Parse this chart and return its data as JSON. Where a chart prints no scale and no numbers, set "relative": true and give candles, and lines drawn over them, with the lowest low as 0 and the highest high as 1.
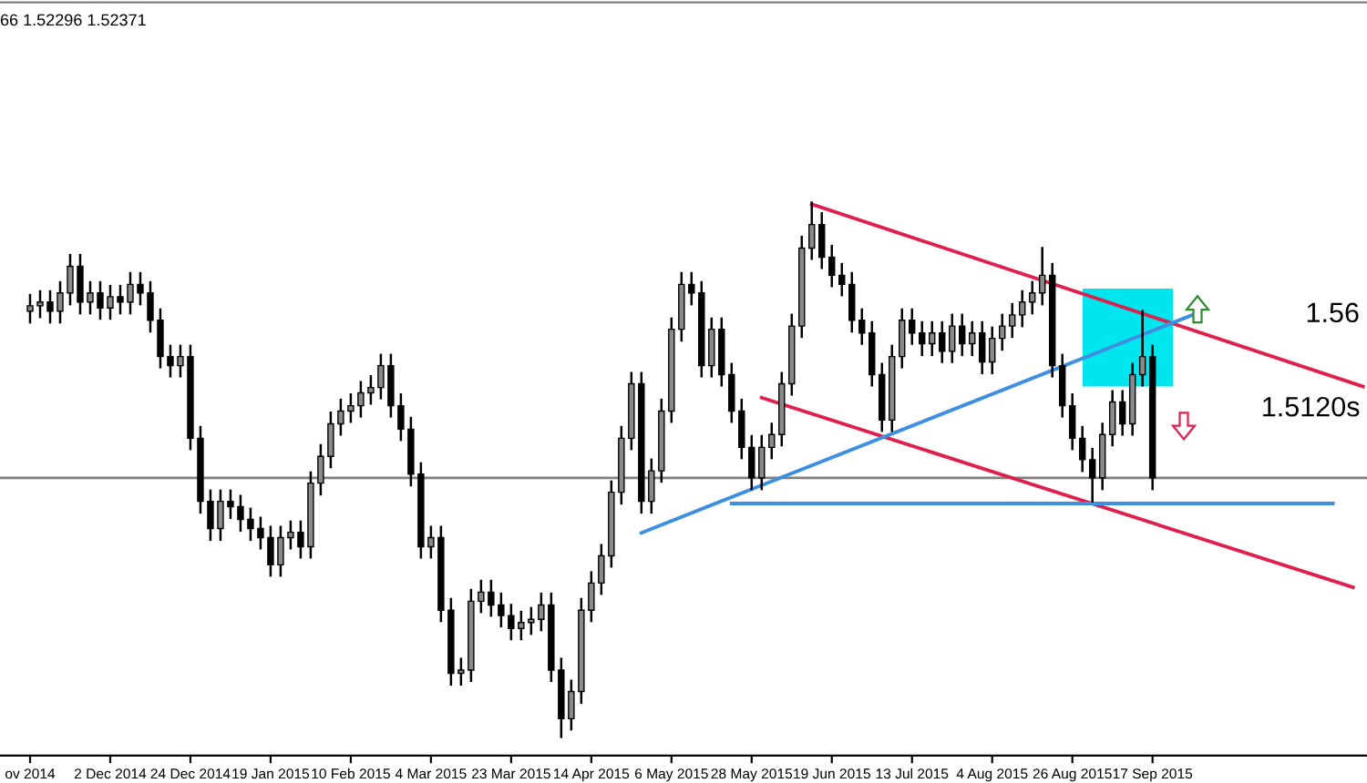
{
  "chart_data": {
    "type": "candlestick",
    "relative": true,
    "color": "#000000",
    "categories": [
      "ov 2014",
      null,
      null,
      null,
      null,
      null,
      null,
      null,
      "2 Dec 2014",
      null,
      null,
      null,
      null,
      null,
      null,
      null,
      "24 Dec 2014",
      null,
      null,
      null,
      null,
      null,
      null,
      null,
      "19 Jan 2015",
      null,
      null,
      null,
      null,
      null,
      null,
      null,
      "10 Feb 2015",
      null,
      null,
      null,
      null,
      null,
      null,
      null,
      "4 Mar 2015",
      null,
      null,
      null,
      null,
      null,
      null,
      null,
      "23 Mar 2015",
      null,
      null,
      null,
      null,
      null,
      null,
      null,
      "14 Apr 2015",
      null,
      null,
      null,
      null,
      null,
      null,
      null,
      "6 May 2015",
      null,
      null,
      null,
      null,
      null,
      null,
      null,
      "28 May 2015",
      null,
      null,
      null,
      null,
      null,
      null,
      null,
      "19 Jun 2015",
      null,
      null,
      null,
      null,
      null,
      null,
      null,
      "13 Jul 2015",
      null,
      null,
      null,
      null,
      null,
      null,
      null,
      "4 Aug 2015",
      null,
      null,
      null,
      null,
      null,
      null,
      null,
      "26 Aug 2015",
      null,
      null,
      null,
      null,
      null,
      null,
      null,
      "17 Sep 2015",
      null,
      null,
      null,
      null,
      null,
      null,
      null,
      null,
      null,
      null,
      null,
      null,
      null,
      null,
      null,
      null,
      null,
      null,
      null,
      null,
      null
    ],
    "ohlc": [
      [
        0.797,
        0.827,
        0.776,
        0.807
      ],
      [
        0.807,
        0.834,
        0.786,
        0.814
      ],
      [
        0.814,
        0.834,
        0.776,
        0.797
      ],
      [
        0.797,
        0.851,
        0.776,
        0.831
      ],
      [
        0.831,
        0.902,
        0.81,
        0.881
      ],
      [
        0.881,
        0.902,
        0.793,
        0.814
      ],
      [
        0.814,
        0.851,
        0.793,
        0.831
      ],
      [
        0.831,
        0.851,
        0.783,
        0.803
      ],
      [
        0.803,
        0.844,
        0.783,
        0.824
      ],
      [
        0.824,
        0.844,
        0.793,
        0.814
      ],
      [
        0.814,
        0.868,
        0.793,
        0.847
      ],
      [
        0.847,
        0.868,
        0.81,
        0.831
      ],
      [
        0.831,
        0.851,
        0.759,
        0.78
      ],
      [
        0.78,
        0.8,
        0.692,
        0.712
      ],
      [
        0.712,
        0.732,
        0.675,
        0.695
      ],
      [
        0.695,
        0.732,
        0.675,
        0.712
      ],
      [
        0.712,
        0.732,
        0.539,
        0.559
      ],
      [
        0.559,
        0.58,
        0.42,
        0.441
      ],
      [
        0.441,
        0.461,
        0.369,
        0.39
      ],
      [
        0.39,
        0.461,
        0.369,
        0.441
      ],
      [
        0.441,
        0.461,
        0.41,
        0.431
      ],
      [
        0.431,
        0.451,
        0.386,
        0.407
      ],
      [
        0.407,
        0.427,
        0.369,
        0.39
      ],
      [
        0.39,
        0.41,
        0.353,
        0.373
      ],
      [
        0.373,
        0.393,
        0.302,
        0.322
      ],
      [
        0.322,
        0.393,
        0.302,
        0.373
      ],
      [
        0.373,
        0.403,
        0.353,
        0.383
      ],
      [
        0.383,
        0.403,
        0.336,
        0.356
      ],
      [
        0.356,
        0.495,
        0.336,
        0.475
      ],
      [
        0.475,
        0.546,
        0.454,
        0.525
      ],
      [
        0.525,
        0.607,
        0.505,
        0.586
      ],
      [
        0.586,
        0.631,
        0.566,
        0.61
      ],
      [
        0.61,
        0.641,
        0.59,
        0.62
      ],
      [
        0.62,
        0.664,
        0.6,
        0.644
      ],
      [
        0.644,
        0.675,
        0.624,
        0.654
      ],
      [
        0.654,
        0.715,
        0.634,
        0.695
      ],
      [
        0.695,
        0.715,
        0.6,
        0.62
      ],
      [
        0.62,
        0.641,
        0.556,
        0.576
      ],
      [
        0.576,
        0.597,
        0.471,
        0.492
      ],
      [
        0.492,
        0.512,
        0.336,
        0.356
      ],
      [
        0.356,
        0.393,
        0.336,
        0.373
      ],
      [
        0.373,
        0.393,
        0.217,
        0.237
      ],
      [
        0.237,
        0.258,
        0.098,
        0.119
      ],
      [
        0.119,
        0.146,
        0.098,
        0.125
      ],
      [
        0.125,
        0.275,
        0.105,
        0.254
      ],
      [
        0.254,
        0.292,
        0.234,
        0.271
      ],
      [
        0.271,
        0.292,
        0.227,
        0.247
      ],
      [
        0.247,
        0.268,
        0.207,
        0.227
      ],
      [
        0.227,
        0.247,
        0.183,
        0.203
      ],
      [
        0.203,
        0.234,
        0.183,
        0.214
      ],
      [
        0.214,
        0.241,
        0.193,
        0.22
      ],
      [
        0.22,
        0.268,
        0.2,
        0.247
      ],
      [
        0.247,
        0.268,
        0.105,
        0.125
      ],
      [
        0.125,
        0.146,
        0,
        0.034
      ],
      [
        0.034,
        0.105,
        0.014,
        0.085
      ],
      [
        0.085,
        0.258,
        0.064,
        0.237
      ],
      [
        0.237,
        0.308,
        0.217,
        0.288
      ],
      [
        0.288,
        0.359,
        0.268,
        0.339
      ],
      [
        0.339,
        0.478,
        0.319,
        0.458
      ],
      [
        0.458,
        0.58,
        0.437,
        0.559
      ],
      [
        0.559,
        0.681,
        0.539,
        0.661
      ],
      [
        0.661,
        0.681,
        0.42,
        0.441
      ],
      [
        0.441,
        0.519,
        0.42,
        0.498
      ],
      [
        0.498,
        0.631,
        0.478,
        0.61
      ],
      [
        0.61,
        0.783,
        0.59,
        0.763
      ],
      [
        0.763,
        0.868,
        0.742,
        0.847
      ],
      [
        0.847,
        0.868,
        0.81,
        0.831
      ],
      [
        0.831,
        0.851,
        0.675,
        0.695
      ],
      [
        0.695,
        0.783,
        0.675,
        0.763
      ],
      [
        0.763,
        0.783,
        0.658,
        0.678
      ],
      [
        0.678,
        0.698,
        0.59,
        0.61
      ],
      [
        0.61,
        0.631,
        0.522,
        0.542
      ],
      [
        0.542,
        0.563,
        0.464,
        0.485
      ],
      [
        0.485,
        0.563,
        0.464,
        0.542
      ],
      [
        0.542,
        0.586,
        0.522,
        0.566
      ],
      [
        0.566,
        0.681,
        0.546,
        0.661
      ],
      [
        0.661,
        0.79,
        0.641,
        0.769
      ],
      [
        0.769,
        0.936,
        0.749,
        0.915
      ],
      [
        0.915,
        1,
        0.895,
        0.959
      ],
      [
        0.959,
        0.98,
        0.878,
        0.898
      ],
      [
        0.898,
        0.919,
        0.844,
        0.864
      ],
      [
        0.864,
        0.885,
        0.827,
        0.847
      ],
      [
        0.847,
        0.868,
        0.759,
        0.78
      ],
      [
        0.78,
        0.8,
        0.736,
        0.756
      ],
      [
        0.756,
        0.776,
        0.658,
        0.678
      ],
      [
        0.678,
        0.698,
        0.573,
        0.593
      ],
      [
        0.593,
        0.732,
        0.573,
        0.712
      ],
      [
        0.712,
        0.8,
        0.692,
        0.78
      ],
      [
        0.78,
        0.8,
        0.736,
        0.756
      ],
      [
        0.756,
        0.776,
        0.715,
        0.736
      ],
      [
        0.736,
        0.776,
        0.715,
        0.756
      ],
      [
        0.756,
        0.776,
        0.702,
        0.722
      ],
      [
        0.722,
        0.79,
        0.702,
        0.769
      ],
      [
        0.769,
        0.79,
        0.715,
        0.736
      ],
      [
        0.736,
        0.776,
        0.715,
        0.756
      ],
      [
        0.756,
        0.776,
        0.681,
        0.702
      ],
      [
        0.702,
        0.766,
        0.681,
        0.746
      ],
      [
        0.746,
        0.79,
        0.725,
        0.769
      ],
      [
        0.769,
        0.81,
        0.749,
        0.79
      ],
      [
        0.79,
        0.834,
        0.769,
        0.814
      ],
      [
        0.814,
        0.851,
        0.793,
        0.831
      ],
      [
        0.831,
        0.915,
        0.81,
        0.864
      ],
      [
        0.864,
        0.885,
        0.675,
        0.695
      ],
      [
        0.695,
        0.715,
        0.6,
        0.62
      ],
      [
        0.62,
        0.641,
        0.539,
        0.559
      ],
      [
        0.559,
        0.58,
        0.498,
        0.519
      ],
      [
        0.519,
        0.539,
        0.441,
        0.485
      ],
      [
        0.485,
        0.586,
        0.464,
        0.566
      ],
      [
        0.566,
        0.647,
        0.546,
        0.627
      ],
      [
        0.627,
        0.647,
        0.566,
        0.586
      ],
      [
        0.586,
        0.698,
        0.566,
        0.678
      ],
      [
        0.678,
        0.797,
        0.658,
        0.712
      ],
      [
        0.712,
        0.732,
        0.464,
        0.485
      ],
      null,
      null,
      null,
      null,
      null,
      null,
      null,
      null,
      null,
      null,
      null,
      null,
      null,
      null,
      null,
      null,
      null,
      null,
      null,
      null,
      null
    ],
    "series": [
      {
        "type": "line",
        "color": "#e0204c",
        "values": [
          null,
          null,
          null,
          null,
          null,
          null,
          null,
          null,
          null,
          null,
          null,
          null,
          null,
          null,
          null,
          null,
          null,
          null,
          null,
          null,
          null,
          null,
          null,
          null,
          null,
          null,
          null,
          null,
          null,
          null,
          null,
          null,
          null,
          null,
          null,
          null,
          null,
          null,
          null,
          null,
          null,
          null,
          null,
          null,
          null,
          null,
          null,
          null,
          null,
          null,
          null,
          null,
          null,
          null,
          null,
          null,
          null,
          null,
          null,
          null,
          null,
          null,
          null,
          null,
          null,
          null,
          null,
          null,
          null,
          null,
          null,
          null,
          null,
          null,
          null,
          null,
          null,
          null,
          0.997,
          null,
          null,
          null,
          null,
          null,
          null,
          null,
          null,
          null,
          null,
          null,
          null,
          null,
          null,
          null,
          null,
          null,
          null,
          null,
          null,
          null,
          null,
          null,
          null,
          null,
          null,
          null,
          null,
          null,
          null,
          null,
          null,
          null,
          null,
          null,
          null,
          null,
          null,
          null,
          null,
          null,
          null,
          null,
          null,
          null,
          null,
          null,
          null,
          null,
          null,
          null,
          null,
          null,
          null,
          0.656
        ]
      },
      {
        "type": "line",
        "color": "#e0204c",
        "values": [
          null,
          null,
          null,
          null,
          null,
          null,
          null,
          null,
          null,
          null,
          null,
          null,
          null,
          null,
          null,
          null,
          null,
          null,
          null,
          null,
          null,
          null,
          null,
          null,
          null,
          null,
          null,
          null,
          null,
          null,
          null,
          null,
          null,
          null,
          null,
          null,
          null,
          null,
          null,
          null,
          null,
          null,
          null,
          null,
          null,
          null,
          null,
          null,
          null,
          null,
          null,
          null,
          null,
          null,
          null,
          null,
          null,
          null,
          null,
          null,
          null,
          null,
          null,
          null,
          null,
          null,
          null,
          null,
          null,
          null,
          null,
          null,
          null,
          0.635,
          null,
          null,
          null,
          null,
          null,
          null,
          null,
          null,
          null,
          null,
          null,
          null,
          null,
          null,
          null,
          null,
          null,
          null,
          null,
          null,
          null,
          null,
          null,
          null,
          null,
          null,
          null,
          null,
          null,
          null,
          null,
          null,
          null,
          null,
          null,
          null,
          null,
          null,
          null,
          null,
          null,
          null,
          null,
          null,
          null,
          null,
          null,
          null,
          null,
          null,
          null,
          null,
          null,
          null,
          null,
          null,
          null,
          null,
          0.28,
          null
        ]
      },
      {
        "type": "line",
        "color": "#3d8fe0",
        "values": [
          null,
          null,
          null,
          null,
          null,
          null,
          null,
          null,
          null,
          null,
          null,
          null,
          null,
          null,
          null,
          null,
          null,
          null,
          null,
          null,
          null,
          null,
          null,
          null,
          null,
          null,
          null,
          null,
          null,
          null,
          null,
          null,
          null,
          null,
          null,
          null,
          null,
          null,
          null,
          null,
          null,
          null,
          null,
          null,
          null,
          null,
          null,
          null,
          null,
          null,
          null,
          null,
          null,
          null,
          null,
          null,
          null,
          null,
          null,
          null,
          null,
          0.382,
          null,
          null,
          null,
          null,
          null,
          null,
          null,
          null,
          null,
          null,
          null,
          null,
          null,
          null,
          null,
          null,
          null,
          null,
          null,
          null,
          null,
          null,
          null,
          null,
          null,
          null,
          null,
          null,
          null,
          null,
          null,
          null,
          null,
          null,
          null,
          null,
          null,
          null,
          null,
          null,
          null,
          null,
          null,
          null,
          null,
          null,
          null,
          null,
          null,
          null,
          null,
          null,
          null,
          null,
          0.79,
          null,
          null,
          null,
          null,
          null,
          null,
          null,
          null,
          null,
          null,
          null,
          null,
          null,
          null,
          null,
          null,
          null
        ]
      },
      {
        "type": "line",
        "color": "#3d8fe0",
        "values": [
          null,
          null,
          null,
          null,
          null,
          null,
          null,
          null,
          null,
          null,
          null,
          null,
          null,
          null,
          null,
          null,
          null,
          null,
          null,
          null,
          null,
          null,
          null,
          null,
          null,
          null,
          null,
          null,
          null,
          null,
          null,
          null,
          null,
          null,
          null,
          null,
          null,
          null,
          null,
          null,
          null,
          null,
          null,
          null,
          null,
          null,
          null,
          null,
          null,
          null,
          null,
          null,
          null,
          null,
          null,
          null,
          null,
          null,
          null,
          null,
          null,
          null,
          null,
          null,
          null,
          null,
          null,
          null,
          null,
          null,
          0.437,
          null,
          null,
          null,
          null,
          null,
          null,
          null,
          null,
          null,
          null,
          null,
          null,
          null,
          null,
          null,
          null,
          null,
          null,
          null,
          null,
          null,
          null,
          null,
          null,
          null,
          null,
          null,
          null,
          null,
          null,
          null,
          null,
          null,
          null,
          null,
          null,
          null,
          null,
          null,
          null,
          null,
          null,
          null,
          null,
          null,
          null,
          null,
          null,
          null,
          null,
          null,
          null,
          null,
          null,
          null,
          null,
          null,
          null,
          null,
          0.437,
          null,
          null,
          null
        ]
      }
    ],
    "ref_lines": [
      {
        "axis": "y",
        "value": 0.485,
        "color": "#808080"
      }
    ],
    "annotations": [
      "66 1.52296 1.52371",
      "1.56",
      "1.5120s"
    ],
    "grid": false,
    "legend": false
  }
}
